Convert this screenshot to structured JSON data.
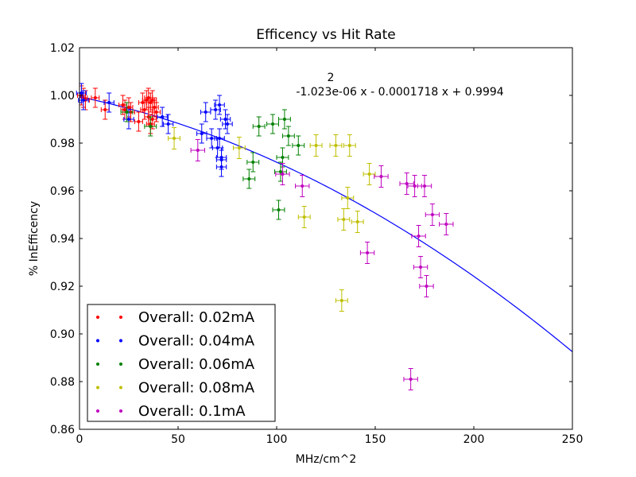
{
  "chart_data": {
    "type": "scatter",
    "title": "Efficency vs Hit Rate",
    "xlabel": "MHz/cm^2",
    "ylabel": "% InEfficency",
    "xlim": [
      0,
      250
    ],
    "ylim": [
      0.86,
      1.02
    ],
    "xticks": [
      "0",
      "50",
      "100",
      "150",
      "200",
      "250"
    ],
    "yticks": [
      "0.86",
      "0.88",
      "0.90",
      "0.92",
      "0.94",
      "0.96",
      "0.98",
      "1.00",
      "1.02"
    ],
    "legend_position": "lower-left",
    "fit_annotation": {
      "exponent": "2",
      "text": "-1.023e-06 x - 0.0001718 x + 0.9994"
    },
    "fit": {
      "a": -1.023e-06,
      "b": -0.0001718,
      "c": 0.9994,
      "color": "#0000ff"
    },
    "series": [
      {
        "name": "Overall: 0.02mA",
        "color": "#ff0000",
        "x": [
          1,
          2,
          3,
          8,
          13,
          22,
          23,
          25,
          26,
          30,
          32,
          33,
          34,
          35,
          35,
          36,
          36,
          37,
          37,
          38,
          39
        ],
        "y": [
          1.0,
          0.999,
          0.998,
          0.999,
          0.994,
          0.996,
          0.994,
          0.995,
          0.993,
          0.989,
          0.997,
          0.994,
          0.998,
          0.999,
          0.991,
          0.997,
          0.988,
          0.998,
          0.99,
          0.995,
          0.993
        ],
        "xerr": 2.0,
        "yerr": 0.004
      },
      {
        "name": "Overall: 0.04mA",
        "color": "#0000ff",
        "x": [
          1,
          2,
          15,
          25,
          42,
          45,
          62,
          64,
          67,
          69,
          70,
          71,
          71,
          72,
          72,
          72,
          74,
          75
        ],
        "y": [
          1.001,
          0.998,
          0.997,
          0.99,
          0.991,
          0.988,
          0.984,
          0.993,
          0.982,
          0.994,
          0.978,
          0.996,
          0.982,
          0.973,
          0.974,
          0.97,
          0.99,
          0.988
        ],
        "xerr": 2.5,
        "yerr": 0.004
      },
      {
        "name": "Overall: 0.06mA",
        "color": "#008000",
        "x": [
          24,
          36,
          86,
          88,
          91,
          98,
          101,
          102,
          103,
          104,
          106,
          111
        ],
        "y": [
          0.993,
          0.987,
          0.965,
          0.972,
          0.987,
          0.988,
          0.952,
          0.968,
          0.974,
          0.99,
          0.983,
          0.979
        ],
        "xerr": 3.0,
        "yerr": 0.004
      },
      {
        "name": "Overall: 0.08mA",
        "color": "#bfbf00",
        "x": [
          48,
          81,
          114,
          120,
          130,
          133,
          134,
          136,
          137,
          141,
          147
        ],
        "y": [
          0.982,
          0.978,
          0.949,
          0.979,
          0.979,
          0.914,
          0.948,
          0.957,
          0.979,
          0.947,
          0.967
        ],
        "xerr": 3.0,
        "yerr": 0.0045
      },
      {
        "name": "Overall: 0.1mA",
        "color": "#bf00bf",
        "x": [
          60,
          103,
          113,
          146,
          153,
          166,
          170,
          172,
          173,
          175,
          176,
          179,
          186,
          168
        ],
        "y": [
          0.977,
          0.967,
          0.962,
          0.934,
          0.966,
          0.963,
          0.962,
          0.941,
          0.928,
          0.962,
          0.92,
          0.95,
          0.946,
          0.881
        ],
        "xerr": 3.5,
        "yerr": 0.0045
      }
    ]
  }
}
